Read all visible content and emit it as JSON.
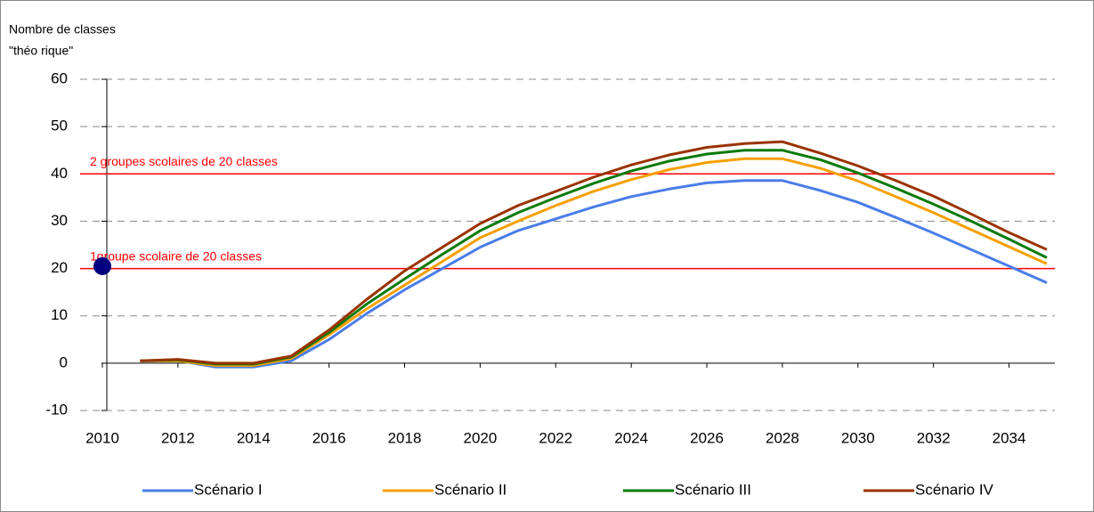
{
  "chart_data": {
    "type": "line",
    "y_label": [
      "Nombre de classes",
      "\"théo rique\""
    ],
    "x": [
      2011,
      2012,
      2013,
      2014,
      2015,
      2016,
      2017,
      2018,
      2019,
      2020,
      2021,
      2022,
      2023,
      2024,
      2025,
      2026,
      2027,
      2028,
      2029,
      2030,
      2031,
      2032,
      2033,
      2034,
      2035
    ],
    "series": [
      {
        "name": "Scénario I",
        "color": "#4a7de8",
        "values": [
          0.5,
          0.5,
          -0.8,
          -0.8,
          0.5,
          5,
          10.5,
          15.5,
          20,
          24.5,
          28,
          30.5,
          33,
          35.2,
          36.8,
          38.1,
          38.6,
          38.6,
          36.5,
          34,
          30.8,
          27.5,
          24,
          20.5,
          17
        ]
      },
      {
        "name": "Scénario II",
        "color": "#f5a000",
        "values": [
          0.5,
          0.5,
          -0.5,
          -0.5,
          1,
          6,
          11.5,
          16.5,
          21.5,
          26.5,
          30,
          33.3,
          36.3,
          38.8,
          40.9,
          42.4,
          43.2,
          43.2,
          41.2,
          38.5,
          35.2,
          31.8,
          28.2,
          24.6,
          21
        ]
      },
      {
        "name": "Scénario III",
        "color": "#0a7a0a",
        "values": [
          0.5,
          0.7,
          -0.2,
          -0.2,
          1.3,
          6.5,
          12.5,
          17.8,
          23,
          28,
          31.8,
          35,
          38,
          40.6,
          42.7,
          44.2,
          45,
          45,
          43,
          40.2,
          37,
          33.6,
          30,
          26.2,
          22.3
        ]
      },
      {
        "name": "Scénario IV",
        "color": "#993300",
        "values": [
          0.5,
          0.8,
          0,
          0,
          1.5,
          7,
          13.5,
          19.5,
          24.5,
          29.5,
          33.3,
          36.3,
          39.3,
          41.9,
          44,
          45.6,
          46.4,
          46.8,
          44.4,
          41.7,
          38.6,
          35.3,
          31.5,
          27.6,
          24
        ]
      }
    ],
    "point": {
      "x": 2010,
      "value": 20.5,
      "color": "#000080"
    },
    "reference_lines": [
      {
        "value": 40,
        "label": "2 groupes scolaires de 20 classes",
        "color": "#ff0000"
      },
      {
        "value": 20,
        "label": "1groupe scolaire de 20 classes",
        "color": "#ff0000"
      }
    ],
    "xlim": [
      2010,
      2035
    ],
    "xticks": [
      2010,
      2012,
      2014,
      2016,
      2018,
      2020,
      2022,
      2024,
      2026,
      2028,
      2030,
      2032,
      2034
    ],
    "ylim": [
      -10,
      60
    ],
    "yticks": [
      -10,
      0,
      10,
      20,
      30,
      40,
      50,
      60
    ],
    "grid": true,
    "legend": "bottom"
  }
}
